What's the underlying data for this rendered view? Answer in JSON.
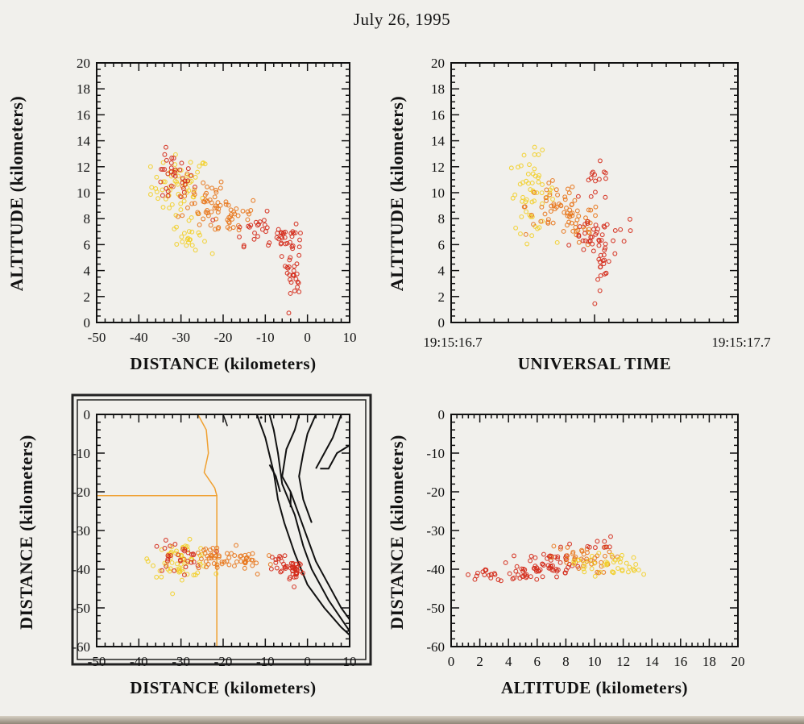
{
  "title": "July 26, 1995",
  "colors": {
    "background": "#f1f0ec",
    "axes": "#111111",
    "source_red": "#d42a1a",
    "source_orange": "#e8761b",
    "source_yellow": "#f2cf2a",
    "border_line": "#f0a030",
    "coast_line": "#111111"
  },
  "chart_data": [
    {
      "id": "alt-vs-distance",
      "type": "scatter",
      "xlabel": "DISTANCE (kilometers)",
      "ylabel": "ALTITUDE (kilometers)",
      "xlim": [
        -50,
        10
      ],
      "ylim": [
        0,
        20
      ],
      "xticks": [
        "-50",
        "-40",
        "-30",
        "-20",
        "-10",
        "0",
        "10"
      ],
      "yticks": [
        "0",
        "2",
        "4",
        "6",
        "8",
        "10",
        "12",
        "14",
        "16",
        "18",
        "20"
      ],
      "clusters": [
        {
          "x": -30,
          "y": 10.5,
          "sx": 3.5,
          "sy": 1.2,
          "n": 60,
          "color": "yellow"
        },
        {
          "x": -32,
          "y": 11.0,
          "sx": 2.5,
          "sy": 1.0,
          "n": 35,
          "color": "red"
        },
        {
          "x": -25,
          "y": 9.5,
          "sx": 3.0,
          "sy": 0.9,
          "n": 40,
          "color": "orange"
        },
        {
          "x": -18,
          "y": 8.2,
          "sx": 3.5,
          "sy": 0.8,
          "n": 35,
          "color": "orange"
        },
        {
          "x": -12,
          "y": 7.2,
          "sx": 3.0,
          "sy": 0.6,
          "n": 25,
          "color": "red"
        },
        {
          "x": -28,
          "y": 6.5,
          "sx": 2.0,
          "sy": 0.6,
          "n": 20,
          "color": "yellow"
        },
        {
          "x": -6,
          "y": 6.5,
          "sx": 1.5,
          "sy": 0.5,
          "n": 18,
          "color": "red"
        },
        {
          "x": -3.5,
          "y": 4.8,
          "sx": 0.9,
          "sy": 1.2,
          "n": 30,
          "color": "red"
        },
        {
          "x": -2.5,
          "y": 2.5,
          "sx": 0.5,
          "sy": 0.8,
          "n": 6,
          "color": "red"
        }
      ]
    },
    {
      "id": "alt-vs-time",
      "type": "scatter",
      "xlabel": "UNIVERSAL TIME",
      "ylabel": "ALTITUDE (kilometers)",
      "xlim": [
        "19:15:16.7",
        "19:15:17.7"
      ],
      "ylim": [
        0,
        20
      ],
      "xticks": [
        "19:15:16.7",
        "19:15:17.7"
      ],
      "yticks": [
        "0",
        "2",
        "4",
        "6",
        "8",
        "10",
        "12",
        "14",
        "16",
        "18",
        "20"
      ],
      "clusters": [
        {
          "x": 0.28,
          "y": 10.0,
          "sx": 0.04,
          "sy": 1.5,
          "n": 55,
          "color": "yellow"
        },
        {
          "x": 0.36,
          "y": 9.0,
          "sx": 0.05,
          "sy": 1.2,
          "n": 40,
          "color": "orange"
        },
        {
          "x": 0.44,
          "y": 7.5,
          "sx": 0.04,
          "sy": 0.9,
          "n": 35,
          "color": "orange"
        },
        {
          "x": 0.49,
          "y": 6.5,
          "sx": 0.03,
          "sy": 0.6,
          "n": 30,
          "color": "red"
        },
        {
          "x": 0.51,
          "y": 10.5,
          "sx": 0.03,
          "sy": 0.8,
          "n": 15,
          "color": "red"
        },
        {
          "x": 0.535,
          "y": 4.5,
          "sx": 0.015,
          "sy": 1.2,
          "n": 20,
          "color": "red"
        },
        {
          "x": 0.59,
          "y": 7.0,
          "sx": 0.03,
          "sy": 0.5,
          "n": 8,
          "color": "red"
        }
      ]
    },
    {
      "id": "distance-vs-distance",
      "type": "scatter",
      "xlabel": "DISTANCE (kilometers)",
      "ylabel": "DISTANCE (kilometers)",
      "xlim": [
        -50,
        10
      ],
      "ylim": [
        -60,
        0
      ],
      "xticks": [
        "-50",
        "-40",
        "-30",
        "-20",
        "-10",
        "0",
        "10"
      ],
      "yticks": [
        "-60",
        "-50",
        "-40",
        "-30",
        "-20",
        "-10",
        "0"
      ],
      "clusters": [
        {
          "x": -30,
          "y": -37.5,
          "sx": 3.5,
          "sy": 2.2,
          "n": 60,
          "color": "yellow"
        },
        {
          "x": -31,
          "y": -37,
          "sx": 3.0,
          "sy": 2.0,
          "n": 30,
          "color": "red"
        },
        {
          "x": -23,
          "y": -37.5,
          "sx": 3.0,
          "sy": 1.8,
          "n": 35,
          "color": "orange"
        },
        {
          "x": -14,
          "y": -38,
          "sx": 3.0,
          "sy": 1.8,
          "n": 25,
          "color": "orange"
        },
        {
          "x": -6,
          "y": -38.5,
          "sx": 1.5,
          "sy": 1.5,
          "n": 18,
          "color": "red"
        },
        {
          "x": -3,
          "y": -40,
          "sx": 0.9,
          "sy": 1.6,
          "n": 28,
          "color": "red"
        }
      ]
    },
    {
      "id": "distance-vs-altitude",
      "type": "scatter",
      "xlabel": "ALTITUDE (kilometers)",
      "ylabel": "DISTANCE (kilometers)",
      "xlim": [
        0,
        20
      ],
      "ylim": [
        -60,
        0
      ],
      "xticks": [
        "0",
        "2",
        "4",
        "6",
        "8",
        "10",
        "12",
        "14",
        "16",
        "18",
        "20"
      ],
      "yticks": [
        "-60",
        "-50",
        "-40",
        "-30",
        "-20",
        "-10",
        "0"
      ],
      "clusters": [
        {
          "x": 2.5,
          "y": -41.5,
          "sx": 0.7,
          "sy": 0.7,
          "n": 12,
          "color": "red"
        },
        {
          "x": 5.0,
          "y": -40.5,
          "sx": 0.9,
          "sy": 1.5,
          "n": 35,
          "color": "red"
        },
        {
          "x": 7.0,
          "y": -38.5,
          "sx": 1.0,
          "sy": 1.8,
          "n": 40,
          "color": "red"
        },
        {
          "x": 9.0,
          "y": -37.5,
          "sx": 1.1,
          "sy": 1.8,
          "n": 40,
          "color": "orange"
        },
        {
          "x": 10.5,
          "y": -38.5,
          "sx": 1.0,
          "sy": 1.5,
          "n": 35,
          "color": "yellow"
        },
        {
          "x": 10.0,
          "y": -34,
          "sx": 0.8,
          "sy": 1.2,
          "n": 10,
          "color": "red"
        },
        {
          "x": 12.5,
          "y": -40,
          "sx": 0.8,
          "sy": 1.2,
          "n": 8,
          "color": "yellow"
        }
      ]
    }
  ]
}
